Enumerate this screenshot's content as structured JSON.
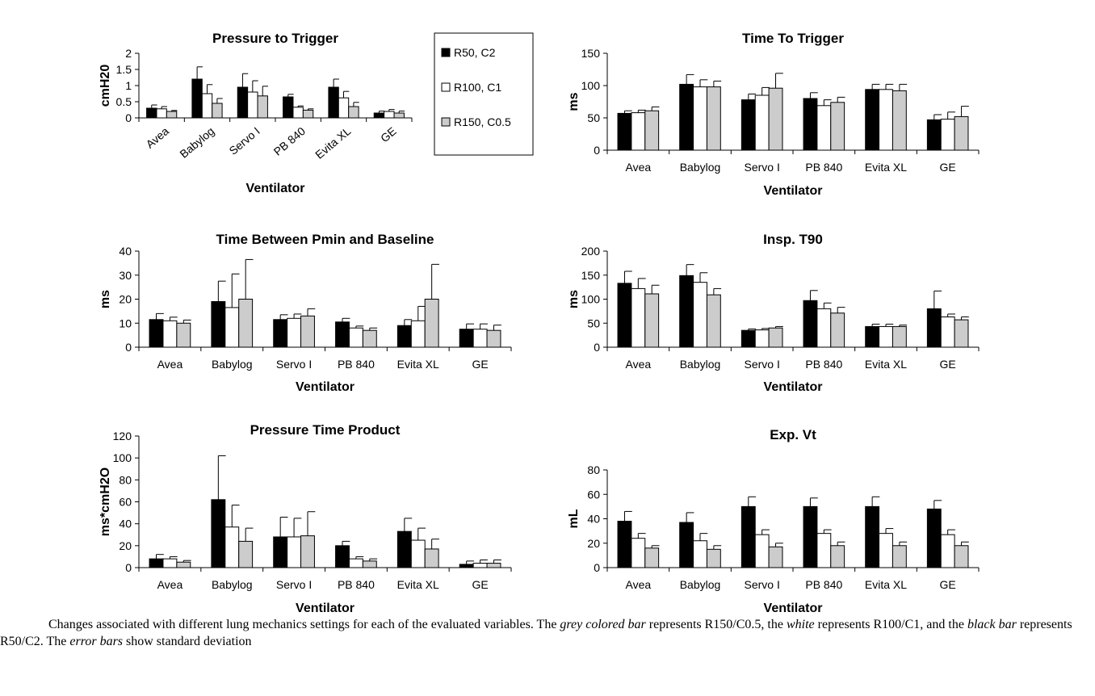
{
  "chart_data": [
    {
      "type": "bar",
      "title": "Pressure to Trigger",
      "xlabel": "Ventilator",
      "ylabel": "cmH20",
      "ylim": [
        0,
        2
      ],
      "yticks": [
        0,
        0.5,
        1,
        1.5,
        2
      ],
      "ytick_labels": [
        "0",
        "0.5",
        "1",
        "1.5",
        "2"
      ],
      "categories": [
        "Avea",
        "Babylog",
        "Servo I",
        "PB 840",
        "Evita XL",
        "GE"
      ],
      "rotated_labels": true,
      "legend": "right",
      "series": [
        {
          "name": "R50, C2",
          "color": "#000000",
          "values": [
            0.3,
            1.2,
            0.95,
            0.65,
            0.95,
            0.15
          ],
          "errors": [
            0.1,
            0.38,
            0.42,
            0.08,
            0.25,
            0.06
          ]
        },
        {
          "name": "R100, C1",
          "color": "#ffffff",
          "values": [
            0.28,
            0.75,
            0.8,
            0.33,
            0.62,
            0.2
          ],
          "errors": [
            0.07,
            0.28,
            0.35,
            0.04,
            0.2,
            0.06
          ]
        },
        {
          "name": "R150, C0.5",
          "color": "#cccccc",
          "values": [
            0.2,
            0.45,
            0.68,
            0.24,
            0.35,
            0.15
          ],
          "errors": [
            0.03,
            0.15,
            0.3,
            0.04,
            0.13,
            0.06
          ]
        }
      ]
    },
    {
      "type": "bar",
      "title": "Time To Trigger",
      "xlabel": "Ventilator",
      "ylabel": "ms",
      "ylim": [
        0,
        150
      ],
      "yticks": [
        0,
        50,
        100,
        150
      ],
      "ytick_labels": [
        "0",
        "50",
        "100",
        "150"
      ],
      "categories": [
        "Avea",
        "Babylog",
        "Servo I",
        "PB 840",
        "Evita XL",
        "GE"
      ],
      "series": [
        {
          "name": "R50, C2",
          "color": "#000000",
          "values": [
            57,
            102,
            78,
            80,
            94,
            47
          ],
          "errors": [
            4,
            15,
            9,
            9,
            8,
            8
          ]
        },
        {
          "name": "R100, C1",
          "color": "#ffffff",
          "values": [
            58,
            98,
            85,
            69,
            94,
            48
          ],
          "errors": [
            4,
            11,
            12,
            9,
            8,
            11
          ]
        },
        {
          "name": "R150, C0.5",
          "color": "#cccccc",
          "values": [
            61,
            98,
            96,
            74,
            92,
            52
          ],
          "errors": [
            6,
            9,
            23,
            8,
            10,
            16
          ]
        }
      ]
    },
    {
      "type": "bar",
      "title": "Time Between Pmin and Baseline",
      "xlabel": "Ventilator",
      "ylabel": "ms",
      "ylim": [
        0,
        40
      ],
      "yticks": [
        0,
        10,
        20,
        30,
        40
      ],
      "ytick_labels": [
        "0",
        "10",
        "20",
        "30",
        "40"
      ],
      "categories": [
        "Avea",
        "Babylog",
        "Servo I",
        "PB 840",
        "Evita XL",
        "GE"
      ],
      "series": [
        {
          "name": "R50, C2",
          "color": "#000000",
          "values": [
            11.5,
            19,
            11.5,
            10.5,
            9,
            7.5
          ],
          "errors": [
            2.5,
            8.5,
            2,
            1.5,
            2.5,
            2.2
          ]
        },
        {
          "name": "R100, C1",
          "color": "#ffffff",
          "values": [
            11,
            16.5,
            12,
            8,
            11,
            7.5
          ],
          "errors": [
            1.5,
            14,
            1.8,
            0.8,
            6,
            2.2
          ]
        },
        {
          "name": "R150, C0.5",
          "color": "#cccccc",
          "values": [
            10,
            20,
            13,
            7,
            20,
            7
          ],
          "errors": [
            1.3,
            16.5,
            3,
            1,
            14.5,
            2.2
          ]
        }
      ]
    },
    {
      "type": "bar",
      "title": "Insp. T90",
      "xlabel": "Ventilator",
      "ylabel": "ms",
      "ylim": [
        0,
        200
      ],
      "yticks": [
        0,
        50,
        100,
        150,
        200
      ],
      "ytick_labels": [
        "0",
        "50",
        "100",
        "150",
        "200"
      ],
      "categories": [
        "Avea",
        "Babylog",
        "Servo I",
        "PB 840",
        "Evita XL",
        "GE"
      ],
      "series": [
        {
          "name": "R50, C2",
          "color": "#000000",
          "values": [
            133,
            149,
            35,
            97,
            43,
            80
          ],
          "errors": [
            25,
            23,
            3,
            21,
            5,
            37
          ]
        },
        {
          "name": "R100, C1",
          "color": "#ffffff",
          "values": [
            122,
            135,
            36,
            80,
            43,
            63
          ],
          "errors": [
            21,
            20,
            3,
            12,
            5,
            6
          ]
        },
        {
          "name": "R150, C0.5",
          "color": "#cccccc",
          "values": [
            111,
            109,
            40,
            71,
            43,
            57
          ],
          "errors": [
            18,
            13,
            3,
            12,
            3,
            6
          ]
        }
      ]
    },
    {
      "type": "bar",
      "title": "Pressure Time Product",
      "xlabel": "Ventilator",
      "ylabel": "ms*cmH2O",
      "ylim": [
        0,
        120
      ],
      "yticks": [
        0,
        20,
        40,
        60,
        80,
        100,
        120
      ],
      "ytick_labels": [
        "0",
        "20",
        "40",
        "60",
        "80",
        "100",
        "120"
      ],
      "categories": [
        "Avea",
        "Babylog",
        "Servo I",
        "PB 840",
        "Evita XL",
        "GE"
      ],
      "series": [
        {
          "name": "R50, C2",
          "color": "#000000",
          "values": [
            8,
            62,
            28,
            20,
            33,
            3
          ],
          "errors": [
            4,
            40,
            18,
            4,
            12,
            3
          ]
        },
        {
          "name": "R100, C1",
          "color": "#ffffff",
          "values": [
            8,
            37,
            28,
            8,
            25,
            4
          ],
          "errors": [
            2,
            20,
            17,
            2,
            11,
            3
          ]
        },
        {
          "name": "R150, C0.5",
          "color": "#cccccc",
          "values": [
            5,
            24,
            29,
            6,
            17,
            4
          ],
          "errors": [
            1.5,
            12,
            22,
            2,
            9,
            3
          ]
        }
      ]
    },
    {
      "type": "bar",
      "title": "Exp. Vt",
      "xlabel": "Ventilator",
      "ylabel": "mL",
      "ylim": [
        0,
        80
      ],
      "yticks": [
        0,
        20,
        40,
        60,
        80
      ],
      "ytick_labels": [
        "0",
        "20",
        "40",
        "60",
        "80"
      ],
      "categories": [
        "Avea",
        "Babylog",
        "Servo I",
        "PB 840",
        "Evita XL",
        "GE"
      ],
      "series": [
        {
          "name": "R50, C2",
          "color": "#000000",
          "values": [
            38,
            37,
            50,
            50,
            50,
            48
          ],
          "errors": [
            8,
            8,
            8,
            7,
            8,
            7
          ]
        },
        {
          "name": "R100, C1",
          "color": "#ffffff",
          "values": [
            24,
            22,
            27,
            28,
            28,
            27
          ],
          "errors": [
            4,
            6,
            4,
            3,
            4,
            4
          ]
        },
        {
          "name": "R150, C0.5",
          "color": "#cccccc",
          "values": [
            16,
            15,
            17,
            18,
            18,
            18
          ],
          "errors": [
            2,
            3,
            3,
            3,
            3,
            3
          ]
        }
      ]
    }
  ],
  "caption": {
    "part1": "Changes associated with different lung mechanics settings for each of the evaluated variables. The ",
    "em1": "grey colored bar",
    "part2": " represents R150/C0.5, the ",
    "em2": "white",
    "part3": " represents R100/C1, and the ",
    "em3": "black bar",
    "part4": " represents R50/C2. The ",
    "em4": "error bars",
    "part5": " show standard deviation"
  }
}
